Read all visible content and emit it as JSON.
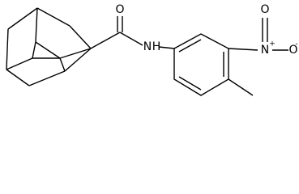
{
  "atoms": [
    {
      "label": "O"
    },
    {
      "label": "N"
    },
    {
      "label": "H"
    },
    {
      "label": "N",
      "charge": "+"
    },
    {
      "label": "O",
      "charge": "-"
    },
    {
      "label": "O"
    }
  ]
}
